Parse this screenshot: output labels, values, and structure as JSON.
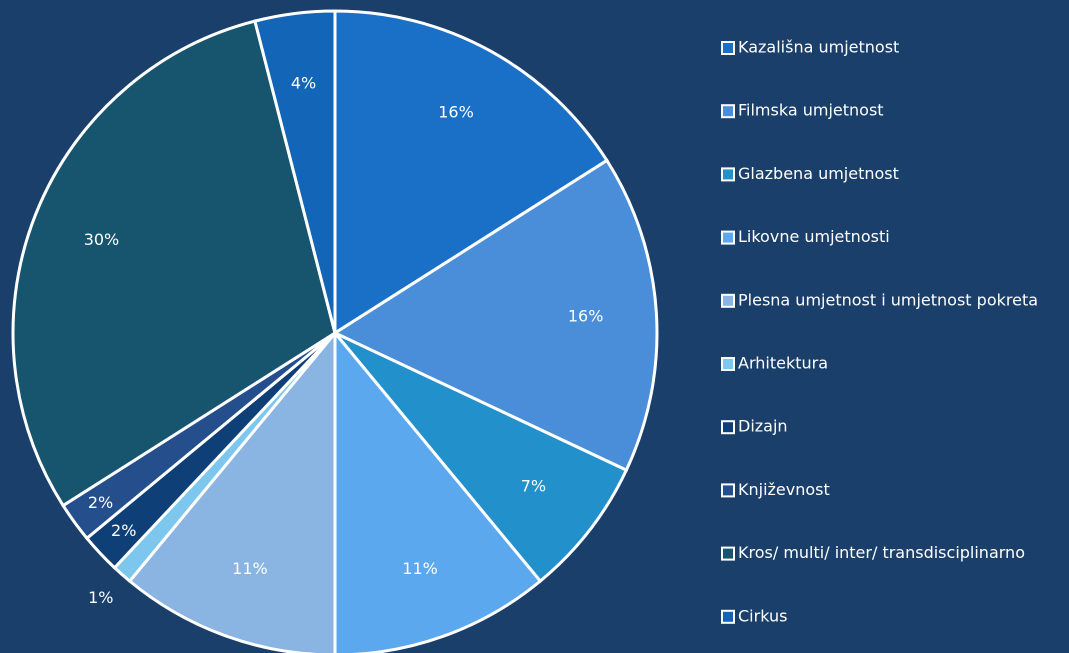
{
  "chart_data": {
    "type": "pie",
    "categories": [
      "Kazališna umjetnost",
      "Filmska umjetnost",
      "Glazbena umjetnost",
      "Likovne umjetnosti",
      "Plesna umjetnost i umjetnost pokreta",
      "Arhitektura",
      "Dizajn",
      "Književnost",
      "Kros/ multi/ inter/ transdisciplinarno",
      "Cirkus"
    ],
    "values": [
      16,
      16,
      7,
      11,
      11,
      1,
      2,
      2,
      30,
      4
    ],
    "value_labels": [
      "16%",
      "16%",
      "7%",
      "11%",
      "11%",
      "1%",
      "2%",
      "2%",
      "30%",
      "4%"
    ],
    "colors": [
      "#1a6fc6",
      "#4a8ed9",
      "#2190cb",
      "#5ba8ef",
      "#8ab4e2",
      "#7dc6ee",
      "#0f3f77",
      "#244f8c",
      "#17546e",
      "#1265b7"
    ],
    "legend": "right"
  }
}
